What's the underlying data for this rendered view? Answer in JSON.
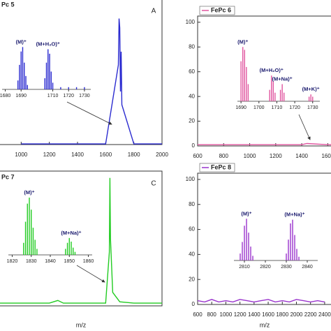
{
  "chart_data": [
    {
      "type": "line",
      "title": "Pc 5",
      "letter": "A",
      "color": "#2b2bd0",
      "x": [
        1000,
        1200,
        1400,
        1600,
        1690,
        1695,
        1700,
        1705,
        1710,
        1715,
        1800,
        2000
      ],
      "values": [
        0.5,
        0.5,
        0.5,
        0.5,
        60,
        95,
        88,
        40,
        70,
        30,
        0.5,
        0.5
      ],
      "xlim": [
        800,
        2000
      ],
      "ylim": [
        0,
        110
      ],
      "xticks": [
        1000,
        1200,
        1400,
        1600,
        1800,
        2000
      ],
      "inset": {
        "xlim": [
          1678,
          1734
        ],
        "ylim": [
          0,
          130
        ],
        "xticks": [
          1680,
          1690,
          1710,
          1720,
          1730
        ],
        "x": [
          1688,
          1689,
          1690,
          1691,
          1692,
          1693,
          1694,
          1705,
          1706,
          1707,
          1708,
          1709,
          1710,
          1715,
          1720,
          1725,
          1730
        ],
        "values": [
          20,
          55,
          85,
          95,
          60,
          30,
          10,
          25,
          60,
          90,
          80,
          40,
          15,
          5,
          5,
          5,
          5
        ],
        "annotations": [
          {
            "text": "(M)⁺",
            "x": 1690
          },
          {
            "text": "(M+H₂O)⁺",
            "x": 1707
          }
        ]
      }
    },
    {
      "type": "line",
      "legend": "FePc 6",
      "color": "#e0559f",
      "x": [
        600,
        800,
        1000,
        1200,
        1400,
        1440,
        1600,
        1700
      ],
      "values": [
        1,
        1,
        1,
        1,
        1,
        2,
        1,
        1
      ],
      "xlim": [
        600,
        1700
      ],
      "ylim": [
        0,
        105
      ],
      "xticks": [
        600,
        800,
        1000,
        1200,
        1400,
        1600
      ],
      "yticks": [
        0,
        20,
        40,
        60,
        80,
        100
      ],
      "inset": {
        "xlim": [
          1688,
          1734
        ],
        "ylim": [
          0,
          110
        ],
        "xticks": [
          1690,
          1700,
          1710,
          1720,
          1730
        ],
        "x": [
          1690,
          1691,
          1692,
          1693,
          1694,
          1706,
          1707,
          1708,
          1709,
          1712,
          1713,
          1714,
          1728,
          1729,
          1730
        ],
        "values": [
          70,
          95,
          90,
          60,
          30,
          20,
          45,
          35,
          15,
          20,
          30,
          15,
          8,
          12,
          8
        ],
        "annotations": [
          {
            "text": "(M)⁺",
            "x": 1691
          },
          {
            "text": "(M+H₂O)⁺",
            "x": 1707
          },
          {
            "text": "(M+Na)⁺",
            "x": 1713
          },
          {
            "text": "(M+K)⁺",
            "x": 1729
          }
        ]
      }
    },
    {
      "type": "line",
      "title": "Pc 7",
      "letter": "C",
      "color": "#22cc22",
      "x_label": "m/z",
      "x": [
        1000,
        1200,
        1400,
        1460,
        1500,
        1600,
        1800,
        1826,
        1830,
        1834,
        1850,
        1900,
        2000,
        2200
      ],
      "values": [
        2,
        2,
        2,
        4,
        2,
        2,
        2,
        40,
        95,
        50,
        10,
        3,
        2,
        2
      ],
      "xlim": [
        1000,
        2200
      ],
      "ylim": [
        0,
        100
      ],
      "inset": {
        "xlim": [
          1818,
          1862
        ],
        "ylim": [
          0,
          110
        ],
        "xticks": [
          1820,
          1830,
          1840,
          1850,
          1860
        ],
        "x": [
          1826,
          1827,
          1828,
          1829,
          1830,
          1831,
          1832,
          1833,
          1848,
          1849,
          1850,
          1851,
          1852,
          1853
        ],
        "values": [
          20,
          55,
          85,
          95,
          75,
          45,
          25,
          10,
          10,
          20,
          28,
          22,
          12,
          5
        ],
        "annotations": [
          {
            "text": "(M)⁺",
            "x": 1829
          },
          {
            "text": "(M+Na)⁺",
            "x": 1851
          }
        ]
      }
    },
    {
      "type": "line",
      "legend": "FePc 8",
      "color": "#9933cc",
      "x_label": "m/z",
      "x": [
        600,
        700,
        800,
        900,
        1000,
        1100,
        1200,
        1300,
        1400,
        1500,
        1600,
        1700,
        1800,
        1900,
        2000,
        2100,
        2200,
        2300,
        2400
      ],
      "values": [
        3,
        2,
        4,
        2,
        3,
        2,
        4,
        3,
        2,
        3,
        4,
        2,
        3,
        2,
        4,
        3,
        2,
        3,
        2
      ],
      "xlim": [
        600,
        2500
      ],
      "ylim": [
        0,
        105
      ],
      "xticks": [
        600,
        800,
        1000,
        1200,
        1400,
        1600,
        1800,
        2000,
        2200,
        2400
      ],
      "yticks": [
        0,
        20,
        40,
        60,
        80,
        100
      ],
      "inset": {
        "xlim": [
          2805,
          2845
        ],
        "ylim": [
          0,
          110
        ],
        "xticks": [
          2810,
          2820,
          2830,
          2840
        ],
        "x": [
          2808,
          2809,
          2810,
          2811,
          2812,
          2813,
          2814,
          2830,
          2831,
          2832,
          2833,
          2834,
          2835,
          2836
        ],
        "values": [
          15,
          40,
          75,
          90,
          60,
          30,
          10,
          15,
          45,
          80,
          88,
          55,
          25,
          8
        ],
        "annotations": [
          {
            "text": "(M)⁺",
            "x": 2811
          },
          {
            "text": "(M+Na)⁺",
            "x": 2834
          }
        ]
      }
    }
  ]
}
